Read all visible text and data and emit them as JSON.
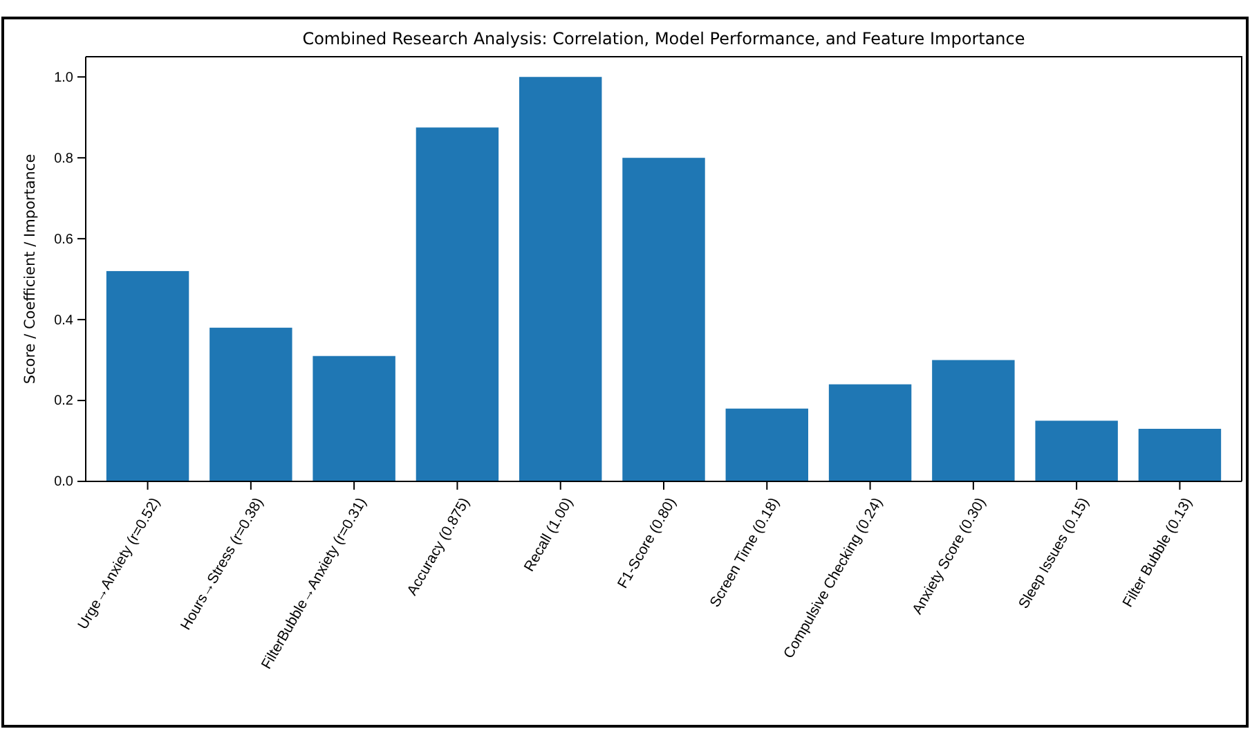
{
  "chart_data": {
    "type": "bar",
    "title": "Combined Research Analysis: Correlation, Model Performance, and Feature Importance",
    "ylabel": "Score / Coefficient / Importance",
    "categories": [
      "Urge→Anxiety (r=0.52)",
      "Hours→Stress (r=0.38)",
      "FilterBubble→Anxiety (r=0.31)",
      "Accuracy (0.875)",
      "Recall (1.00)",
      "F1-Score (0.80)",
      "Screen Time (0.18)",
      "Compulsive Checking (0.24)",
      "Anxiety Score (0.30)",
      "Sleep Issues (0.15)",
      "Filter Bubble (0.13)"
    ],
    "values": [
      0.52,
      0.38,
      0.31,
      0.875,
      1.0,
      0.8,
      0.18,
      0.24,
      0.3,
      0.15,
      0.13
    ],
    "color": "#1f77b4",
    "ylim": [
      0,
      1.05
    ],
    "yticks": [
      {
        "value": 0,
        "label": "0.0"
      },
      {
        "value": 0.2,
        "label": "0.2"
      },
      {
        "value": 0.4,
        "label": "0.4"
      },
      {
        "value": 0.6,
        "label": "0.6"
      },
      {
        "value": 0.8,
        "label": "0.8"
      },
      {
        "value": 1,
        "label": "1.0"
      }
    ]
  }
}
